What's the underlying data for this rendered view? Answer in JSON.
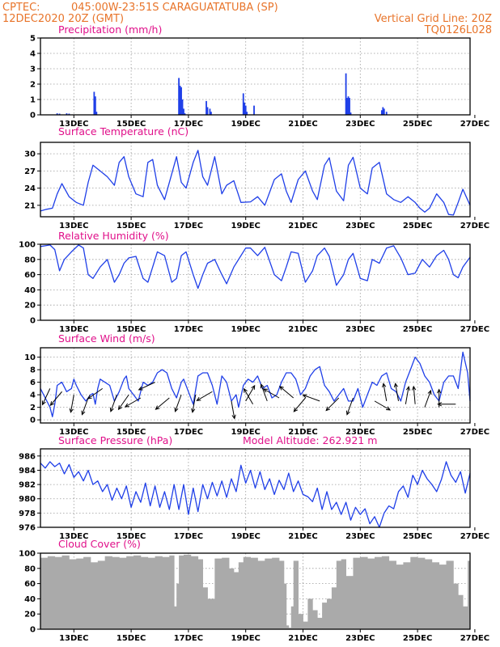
{
  "header": {
    "source": "CPTEC:",
    "location": "045:00W-23:51S  CARAGUATATUBA (SP)",
    "run": "12DEC2020 20Z (GMT)",
    "grid_note": "Vertical Grid Line: 20Z",
    "model": "TQ0126L028",
    "altitude_note": "Model Altitude: 262.921 m"
  },
  "x_axis": {
    "start_hour": 0,
    "end_hour": 360,
    "ticks": [
      {
        "label": "13DEC",
        "hour": 28
      },
      {
        "label": "15DEC",
        "hour": 76
      },
      {
        "label": "17DEC",
        "hour": 124
      },
      {
        "label": "19DEC",
        "hour": 172
      },
      {
        "label": "21DEC",
        "hour": 220
      },
      {
        "label": "23DEC",
        "hour": 268
      },
      {
        "label": "25DEC",
        "hour": 316
      },
      {
        "label": "27DEC",
        "hour": 364
      }
    ]
  },
  "chart_data": [
    {
      "type": "bar",
      "title": "Precipitation (mm/h)",
      "ylim": [
        0,
        5
      ],
      "yticks": [
        0,
        1,
        2,
        3,
        4,
        5
      ],
      "color": "#1f3fe8",
      "x_hours": [
        14,
        16,
        22,
        24,
        45,
        46,
        47,
        116,
        117,
        118,
        119,
        120,
        121,
        139,
        140,
        142,
        143,
        170,
        171,
        172,
        173,
        179,
        256,
        257,
        258,
        259,
        260,
        286,
        287,
        288,
        290
      ],
      "values": [
        0.1,
        0.08,
        0.1,
        0.08,
        1.5,
        1.2,
        0.2,
        2.4,
        1.9,
        1.8,
        1.0,
        0.4,
        0.1,
        0.9,
        0.5,
        0.4,
        0.2,
        1.4,
        0.8,
        0.6,
        0.2,
        0.6,
        2.7,
        1.1,
        1.2,
        1.1,
        0.15,
        0.3,
        0.5,
        0.4,
        0.2
      ]
    },
    {
      "type": "line",
      "title": "Surface Temperature (nC)",
      "ylim": [
        19,
        32
      ],
      "yticks": [
        21,
        24,
        27,
        30
      ],
      "color": "#1f3fe8",
      "x_hours": [
        0,
        5,
        10,
        14,
        18,
        24,
        30,
        36,
        40,
        44,
        50,
        56,
        62,
        66,
        70,
        74,
        80,
        86,
        90,
        94,
        98,
        104,
        110,
        114,
        118,
        122,
        128,
        132,
        136,
        140,
        146,
        152,
        156,
        162,
        168,
        176,
        182,
        188,
        196,
        202,
        206,
        210,
        216,
        222,
        228,
        232,
        238,
        242,
        248,
        254,
        258,
        262,
        268,
        274,
        278,
        284,
        290,
        296,
        302,
        308,
        314,
        318,
        322,
        326,
        332,
        338,
        342,
        346,
        350,
        354,
        360
      ],
      "values": [
        20,
        20.3,
        20.5,
        23,
        24.8,
        22.5,
        21.5,
        21,
        25,
        28,
        27,
        26,
        24.5,
        28.5,
        29.5,
        26,
        23,
        22.5,
        28.5,
        29,
        24.5,
        22,
        26.5,
        29.5,
        25,
        24,
        28.5,
        30.6,
        26,
        24.5,
        29.5,
        23,
        24.5,
        25.3,
        21.5,
        21.6,
        22.5,
        21,
        25.5,
        26.5,
        23.5,
        21.5,
        25.5,
        27,
        23.5,
        22,
        28,
        29.3,
        23.5,
        21.8,
        28,
        29.4,
        24,
        23,
        27.5,
        28.5,
        23,
        22,
        21.5,
        22.5,
        21.5,
        20.5,
        19.8,
        20.5,
        23,
        21.5,
        19.4,
        19.3,
        21.5,
        23.8,
        21
      ]
    },
    {
      "type": "line",
      "title": "Relative Humidity (%)",
      "ylim": [
        0,
        100
      ],
      "yticks": [
        0,
        20,
        40,
        60,
        80,
        100
      ],
      "color": "#1f3fe8",
      "x_hours": [
        0,
        4,
        8,
        12,
        16,
        20,
        26,
        32,
        36,
        40,
        44,
        50,
        56,
        62,
        66,
        70,
        74,
        80,
        86,
        90,
        94,
        98,
        104,
        110,
        114,
        118,
        122,
        128,
        132,
        136,
        140,
        146,
        152,
        156,
        162,
        168,
        172,
        176,
        182,
        188,
        196,
        202,
        206,
        210,
        216,
        222,
        228,
        232,
        238,
        242,
        248,
        254,
        258,
        262,
        268,
        274,
        278,
        284,
        290,
        296,
        302,
        308,
        314,
        320,
        326,
        332,
        338,
        342,
        346,
        350,
        354,
        360
      ],
      "values": [
        97,
        98,
        99,
        93,
        65,
        80,
        90,
        99,
        95,
        60,
        55,
        70,
        80,
        50,
        60,
        75,
        82,
        84,
        55,
        50,
        70,
        90,
        85,
        50,
        55,
        85,
        90,
        60,
        42,
        60,
        75,
        80,
        60,
        48,
        70,
        85,
        95,
        95,
        85,
        96,
        60,
        52,
        70,
        90,
        88,
        50,
        65,
        85,
        95,
        84,
        46,
        60,
        80,
        88,
        55,
        52,
        80,
        75,
        95,
        98,
        82,
        60,
        62,
        80,
        70,
        85,
        92,
        80,
        60,
        56,
        70,
        83
      ]
    },
    {
      "type": "line",
      "title": "Surface Wind (m/s)",
      "ylim": [
        -0.5,
        11.5
      ],
      "yticks": [
        0,
        2,
        4,
        6,
        8,
        10
      ],
      "color": "#1f3fe8",
      "x_hours": [
        0,
        4,
        8,
        10,
        12,
        14,
        18,
        22,
        26,
        28,
        30,
        34,
        38,
        42,
        44,
        46,
        48,
        50,
        54,
        58,
        62,
        66,
        70,
        72,
        74,
        78,
        82,
        86,
        90,
        94,
        98,
        102,
        106,
        110,
        114,
        118,
        120,
        124,
        128,
        132,
        136,
        140,
        144,
        148,
        152,
        156,
        160,
        164,
        166,
        170,
        174,
        178,
        182,
        186,
        190,
        194,
        198,
        202,
        206,
        210,
        214,
        218,
        222,
        226,
        230,
        234,
        238,
        242,
        246,
        250,
        254,
        258,
        262,
        266,
        270,
        274,
        278,
        282,
        286,
        290,
        294,
        298,
        302,
        306,
        310,
        314,
        318,
        322,
        326,
        330,
        334,
        338,
        342,
        346,
        350,
        354,
        358,
        360
      ],
      "values": [
        5,
        3.5,
        2,
        0.5,
        2.5,
        5.5,
        6,
        4.5,
        5,
        6.5,
        5.5,
        4,
        3,
        4,
        4.2,
        2.5,
        5,
        6.5,
        6,
        5.5,
        3,
        4.5,
        6.5,
        7,
        5,
        4,
        3,
        6,
        5.5,
        6,
        7.5,
        8,
        7.5,
        5,
        3.5,
        6,
        6.5,
        4.5,
        2.5,
        7,
        7.5,
        7.5,
        5.5,
        2.5,
        7,
        6,
        3,
        4,
        2,
        5.5,
        6.5,
        6,
        7,
        5,
        5.5,
        3.5,
        4,
        6,
        7.5,
        7.5,
        6.5,
        4,
        5,
        7,
        8,
        8.5,
        5.5,
        4.5,
        3,
        4,
        5,
        3,
        3,
        5,
        2,
        4,
        6,
        5.5,
        7,
        7.5,
        5,
        4.5,
        3,
        6,
        8,
        10,
        9,
        7,
        6,
        4,
        3,
        6,
        7,
        7,
        5,
        10.8,
        7.5,
        3
      ]
    },
    {
      "type": "line",
      "title": "Surface Pressure (hPa)",
      "ylim": [
        976,
        987
      ],
      "yticks": [
        976,
        978,
        980,
        982,
        984,
        986
      ],
      "color": "#1f3fe8",
      "x_hours": [
        0,
        4,
        8,
        12,
        16,
        20,
        24,
        28,
        32,
        36,
        40,
        44,
        48,
        52,
        56,
        60,
        64,
        68,
        72,
        76,
        80,
        84,
        88,
        92,
        96,
        100,
        104,
        108,
        112,
        116,
        120,
        124,
        128,
        132,
        136,
        140,
        144,
        148,
        152,
        156,
        160,
        164,
        168,
        172,
        176,
        180,
        184,
        188,
        192,
        196,
        200,
        204,
        208,
        212,
        216,
        220,
        224,
        228,
        232,
        236,
        240,
        244,
        248,
        252,
        256,
        260,
        264,
        268,
        272,
        276,
        280,
        284,
        288,
        292,
        296,
        300,
        304,
        308,
        312,
        316,
        320,
        324,
        328,
        332,
        336,
        340,
        344,
        348,
        352,
        356,
        360
      ],
      "values": [
        985,
        984.3,
        985.2,
        984.5,
        985,
        983.5,
        984.8,
        983,
        983.8,
        982.5,
        984,
        982,
        982.5,
        981,
        982,
        979.8,
        981.5,
        980,
        981.8,
        978.8,
        981,
        979.5,
        982.2,
        979,
        981.8,
        978.8,
        981,
        978.5,
        982,
        978.5,
        982,
        977.8,
        981.5,
        978.2,
        982,
        980,
        982.3,
        980.4,
        982.5,
        980.2,
        982.8,
        981,
        984.7,
        982.2,
        984,
        981.5,
        983.8,
        981.3,
        982.8,
        980.6,
        982.6,
        981.3,
        983.6,
        981,
        982.5,
        980.6,
        980.3,
        979.6,
        981.5,
        978.5,
        981,
        978.5,
        979.5,
        977.8,
        979.5,
        977,
        978.8,
        977.8,
        978.6,
        976.5,
        977.5,
        976,
        978,
        979,
        978.6,
        981,
        981.8,
        980.2,
        983.3,
        982,
        984,
        982.8,
        982,
        981,
        982.7,
        985.2,
        983.3,
        982.3,
        983.8,
        980.8,
        983.6
      ]
    },
    {
      "type": "area",
      "title": "Cloud Cover (%)",
      "ylim": [
        0,
        100
      ],
      "yticks": [
        0,
        20,
        40,
        60,
        80,
        100
      ],
      "color": "#aaaaaa",
      "x_hours": [
        0,
        6,
        12,
        18,
        24,
        30,
        36,
        42,
        48,
        54,
        60,
        66,
        72,
        78,
        84,
        90,
        96,
        102,
        108,
        112,
        114,
        116,
        120,
        126,
        132,
        136,
        140,
        146,
        152,
        158,
        162,
        166,
        170,
        176,
        182,
        188,
        194,
        200,
        204,
        206,
        208,
        210,
        212,
        216,
        220,
        224,
        228,
        232,
        236,
        240,
        244,
        248,
        252,
        256,
        262,
        268,
        274,
        280,
        286,
        292,
        298,
        304,
        310,
        316,
        322,
        328,
        334,
        340,
        346,
        350,
        354,
        358,
        360
      ],
      "values": [
        94,
        96,
        95,
        97,
        92,
        93,
        95,
        88,
        90,
        96,
        95,
        94,
        96,
        97,
        95,
        94,
        96,
        95,
        97,
        30,
        60,
        97,
        98,
        96,
        92,
        55,
        40,
        93,
        94,
        80,
        75,
        88,
        95,
        94,
        90,
        93,
        94,
        90,
        60,
        5,
        2,
        30,
        90,
        20,
        10,
        40,
        25,
        15,
        35,
        40,
        55,
        90,
        92,
        70,
        94,
        95,
        93,
        95,
        96,
        90,
        85,
        88,
        95,
        94,
        92,
        88,
        85,
        90,
        60,
        45,
        30,
        90,
        95
      ]
    }
  ],
  "wind_vectors": [
    {
      "hour": 8,
      "speed": 5,
      "angle": 205
    },
    {
      "hour": 18,
      "speed": 4.5,
      "angle": 220
    },
    {
      "hour": 28,
      "speed": 4,
      "angle": 190
    },
    {
      "hour": 40,
      "speed": 3.5,
      "angle": 200
    },
    {
      "hour": 52,
      "speed": 5,
      "angle": 235
    },
    {
      "hour": 64,
      "speed": 4,
      "angle": 200
    },
    {
      "hour": 74,
      "speed": 4,
      "angle": 215
    },
    {
      "hour": 84,
      "speed": 3.5,
      "angle": 240
    },
    {
      "hour": 96,
      "speed": 6,
      "angle": 245
    },
    {
      "hour": 108,
      "speed": 3.5,
      "angle": 230
    },
    {
      "hour": 118,
      "speed": 4,
      "angle": 200
    },
    {
      "hour": 130,
      "speed": 4,
      "angle": 190
    },
    {
      "hour": 144,
      "speed": 4.5,
      "angle": 240
    },
    {
      "hour": 160,
      "speed": 3,
      "angle": 170
    },
    {
      "hour": 172,
      "speed": 3,
      "angle": 30
    },
    {
      "hour": 178,
      "speed": 2.5,
      "angle": 330
    },
    {
      "hour": 190,
      "speed": 3,
      "angle": 340
    },
    {
      "hour": 200,
      "speed": 3.5,
      "angle": 300
    },
    {
      "hour": 212,
      "speed": 3.5,
      "angle": 310
    },
    {
      "hour": 222,
      "speed": 3.5,
      "angle": 220
    },
    {
      "hour": 234,
      "speed": 3,
      "angle": 290
    },
    {
      "hour": 250,
      "speed": 3.5,
      "angle": 225
    },
    {
      "hour": 262,
      "speed": 3.5,
      "angle": 200
    },
    {
      "hour": 280,
      "speed": 3,
      "angle": 120
    },
    {
      "hour": 290,
      "speed": 3,
      "angle": 350
    },
    {
      "hour": 300,
      "speed": 3,
      "angle": 350
    },
    {
      "hour": 306,
      "speed": 2.5,
      "angle": 10
    },
    {
      "hour": 314,
      "speed": 2.5,
      "angle": 355
    },
    {
      "hour": 322,
      "speed": 2,
      "angle": 20
    },
    {
      "hour": 334,
      "speed": 2,
      "angle": 0
    },
    {
      "hour": 348,
      "speed": 2.5,
      "angle": 270
    }
  ]
}
